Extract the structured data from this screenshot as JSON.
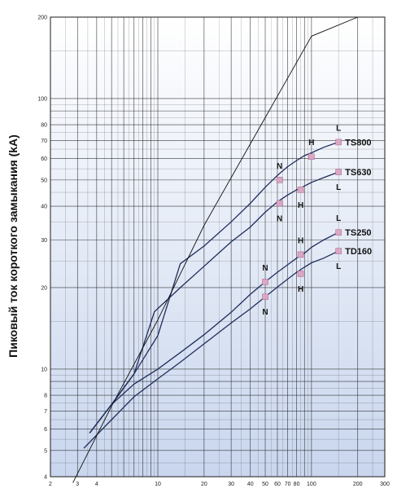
{
  "chart_data": {
    "type": "line",
    "title": "",
    "xlabel": "",
    "ylabel": "Пиковый ток короткого замыкания (kA)",
    "xscale": "log",
    "yscale": "log",
    "xlim": [
      2,
      300
    ],
    "ylim": [
      4,
      200
    ],
    "grid": true,
    "x_ticks": [
      2,
      3,
      4,
      5,
      6,
      7,
      8,
      9,
      10,
      20,
      30,
      40,
      50,
      60,
      70,
      80,
      90,
      100,
      200,
      300
    ],
    "x_tick_labels": [
      "2",
      "3",
      "4",
      "",
      "",
      "",
      "",
      "",
      "10",
      "20",
      "30",
      "40",
      "50",
      "60",
      "70",
      "80",
      "",
      "100",
      "200",
      "300"
    ],
    "y_ticks": [
      4,
      5,
      6,
      7,
      8,
      9,
      10,
      20,
      30,
      40,
      50,
      60,
      70,
      80,
      90,
      100,
      200
    ],
    "y_tick_labels": [
      "4",
      "5",
      "6",
      "7",
      "8",
      "",
      "10",
      "20",
      "30",
      "40",
      "50",
      "60",
      "70",
      "80",
      "",
      "100",
      "200"
    ],
    "series": [
      {
        "name": "TS800",
        "x": [
          3.6,
          5,
          7,
          10,
          14,
          20,
          30,
          40,
          50,
          60,
          70,
          80,
          90,
          100,
          120,
          150
        ],
        "y": [
          5.8,
          7.4,
          9.6,
          13.3,
          24.5,
          28.5,
          35,
          41,
          47,
          52,
          56,
          59,
          61.5,
          63,
          66,
          69
        ]
      },
      {
        "name": "TS630",
        "x": [
          3.6,
          5,
          7,
          9.5,
          14,
          20,
          30,
          40,
          50,
          60,
          70,
          80,
          90,
          100,
          120,
          150
        ],
        "y": [
          5.8,
          7.4,
          9.6,
          16.3,
          20,
          24,
          29.5,
          33.5,
          38,
          41.5,
          44,
          46,
          47.5,
          49,
          51,
          53.5
        ]
      },
      {
        "name": "TS250",
        "x": [
          3.6,
          5,
          7,
          10,
          14,
          20,
          30,
          40,
          50,
          60,
          70,
          80,
          90,
          100,
          120,
          150
        ],
        "y": [
          5.8,
          7.4,
          8.8,
          10,
          11.5,
          13.4,
          16.2,
          18.9,
          21,
          22.8,
          24.3,
          25.7,
          26.8,
          28.2,
          30,
          32
        ]
      },
      {
        "name": "TD160",
        "x": [
          3.3,
          5,
          7,
          10,
          14,
          20,
          30,
          40,
          50,
          60,
          70,
          80,
          90,
          100,
          120,
          150
        ],
        "y": [
          5.1,
          6.5,
          7.9,
          9.2,
          10.6,
          12.4,
          14.8,
          16.7,
          18.5,
          20.1,
          21.5,
          22.8,
          23.8,
          24.7,
          25.7,
          27.3
        ]
      },
      {
        "name": "",
        "x": [
          2.8,
          5,
          10,
          20,
          50,
          100,
          200
        ],
        "y": [
          3.8,
          7.3,
          15.2,
          34,
          85,
          170,
          200
        ]
      }
    ],
    "markers": [
      {
        "series": "TS800",
        "label": "N",
        "x": 62,
        "y": 50,
        "label_dx": 0,
        "label_dy": -18
      },
      {
        "series": "TS800",
        "label": "H",
        "x": 100,
        "y": 61,
        "label_dx": 0,
        "label_dy": -18
      },
      {
        "series": "TS800",
        "label": "L",
        "x": 150,
        "y": 69,
        "label_dx": 0,
        "label_dy": -18
      },
      {
        "series": "TS630",
        "label": "N",
        "x": 62,
        "y": 41,
        "label_dx": 0,
        "label_dy": 18
      },
      {
        "series": "TS630",
        "label": "H",
        "x": 85,
        "y": 46,
        "label_dx": 0,
        "label_dy": 18
      },
      {
        "series": "TS630",
        "label": "L",
        "x": 150,
        "y": 53.5,
        "label_dx": 0,
        "label_dy": 18
      },
      {
        "series": "TS250",
        "label": "N",
        "x": 50,
        "y": 21,
        "label_dx": 0,
        "label_dy": -18
      },
      {
        "series": "TS250",
        "label": "H",
        "x": 85,
        "y": 26.5,
        "label_dx": 0,
        "label_dy": -18
      },
      {
        "series": "TS250",
        "label": "L",
        "x": 150,
        "y": 32,
        "label_dx": 0,
        "label_dy": -18
      },
      {
        "series": "TD160",
        "label": "N",
        "x": 50,
        "y": 18.5,
        "label_dx": 0,
        "label_dy": 18
      },
      {
        "series": "TD160",
        "label": "H",
        "x": 85,
        "y": 22.5,
        "label_dx": 0,
        "label_dy": 18
      },
      {
        "series": "TD160",
        "label": "L",
        "x": 150,
        "y": 27.3,
        "label_dx": 0,
        "label_dy": 18
      }
    ],
    "colors": {
      "curve": "#1f2d5c",
      "limit_line": "#111111",
      "marker_fill": "#d9a8c4",
      "marker_stroke": "#b56f98",
      "grid": "#1a1a1a",
      "plot_bg_top": "#ffffff",
      "plot_bg_bottom": "#c9d6ee"
    }
  }
}
